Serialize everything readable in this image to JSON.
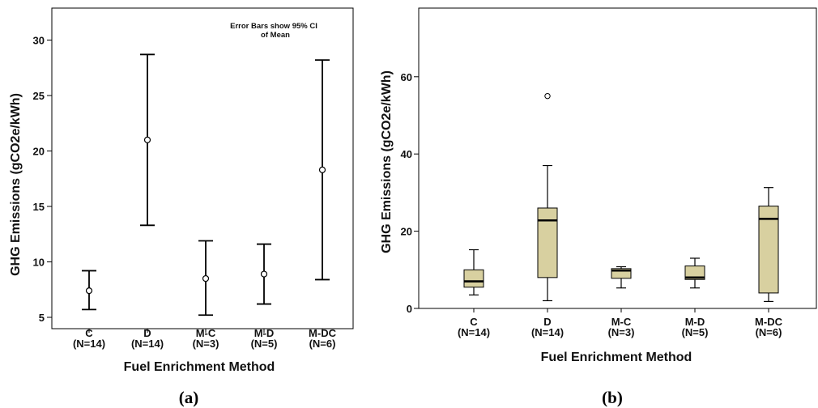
{
  "chart_data": [
    {
      "type": "errorbar",
      "panel_label": "(a)",
      "xlabel": "Fuel Enrichment Method",
      "ylabel": "GHG Emissions (gCO2e/kWh)",
      "ylim": [
        5,
        32
      ],
      "yticks": [
        5,
        10,
        15,
        20,
        25,
        30
      ],
      "annotation": [
        "Error Bars show 95% CI",
        "of Mean"
      ],
      "categories": [
        "C",
        "D",
        "M-C",
        "M-D",
        "M-DC"
      ],
      "category_n": [
        "(N=14)",
        "(N=14)",
        "(N=3)",
        "(N=5)",
        "(N=6)"
      ],
      "mean": [
        7.4,
        21.0,
        8.5,
        8.9,
        18.3
      ],
      "ci_low": [
        5.7,
        13.3,
        5.2,
        6.2,
        8.4
      ],
      "ci_high": [
        9.2,
        28.7,
        11.9,
        11.6,
        28.2
      ]
    },
    {
      "type": "boxplot",
      "panel_label": "(b)",
      "xlabel": "Fuel Enrichment Method",
      "ylabel": "GHG Emissions (gCO2e/kWh)",
      "ylim": [
        0,
        78
      ],
      "yticks": [
        0,
        20,
        40,
        60
      ],
      "box_color": "#d8d0a0",
      "categories": [
        "C",
        "D",
        "M-C",
        "M-D",
        "M-DC"
      ],
      "category_n": [
        "(N=14)",
        "(N=14)",
        "(N=3)",
        "(N=5)",
        "(N=6)"
      ],
      "boxes": [
        {
          "min": 3.5,
          "q1": 5.5,
          "median": 7.0,
          "q3": 10.0,
          "max": 15.2,
          "outliers": []
        },
        {
          "min": 2.0,
          "q1": 8.0,
          "median": 22.8,
          "q3": 26.0,
          "max": 37.0,
          "outliers": [
            55.0
          ]
        },
        {
          "min": 5.3,
          "q1": 7.8,
          "median": 9.8,
          "q3": 10.3,
          "max": 10.8,
          "outliers": []
        },
        {
          "min": 5.3,
          "q1": 7.5,
          "median": 8.0,
          "q3": 11.0,
          "max": 13.0,
          "outliers": []
        },
        {
          "min": 1.8,
          "q1": 4.0,
          "median": 23.2,
          "q3": 26.5,
          "max": 31.3,
          "outliers": []
        }
      ]
    }
  ]
}
